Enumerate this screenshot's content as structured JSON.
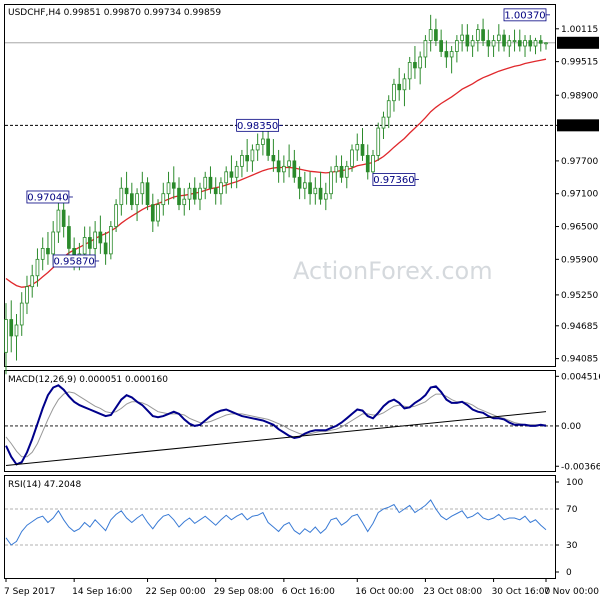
{
  "watermark": "ActionForex.com",
  "colors": {
    "candle": "#2b8a2b",
    "ma": "#e0282c",
    "macd": "#00008b",
    "signal": "#999999",
    "rsi": "#3a7bd5",
    "grid": "#888888",
    "priceTag": "#000000"
  },
  "chart_data": [
    {
      "type": "candlestick",
      "title": "USDCHF,H4  0.99851  0.99870  0.99734  0.99859",
      "ylim": [
        0.9395,
        1.0055
      ],
      "y_ticks": [
        "1.00115",
        "0.99515",
        "0.98900",
        "0.98350",
        "0.97700",
        "0.97100",
        "0.96500",
        "0.95900",
        "0.95250",
        "0.94685",
        "0.94085"
      ],
      "y_tick_values": [
        1.00115,
        0.99515,
        0.989,
        0.9835,
        0.977,
        0.971,
        0.965,
        0.959,
        0.9525,
        0.94685,
        0.94085
      ],
      "last_price": "0.99859",
      "last_price_value": 0.99859,
      "horizontal_line": "0.98350",
      "horizontal_line_value": 0.9835,
      "annotations": [
        {
          "text": "1.00370",
          "x": 103,
          "y": 1.0037
        },
        {
          "text": "0.98350",
          "x": 52,
          "y": 0.9835
        },
        {
          "text": "0.97360",
          "x": 78,
          "y": 0.9736
        },
        {
          "text": "0.97040",
          "x": 12,
          "y": 0.9704
        },
        {
          "text": "0.95870",
          "x": 17,
          "y": 0.9587
        }
      ],
      "candles": [
        [
          0.942,
          0.951,
          0.938,
          0.948
        ],
        [
          0.948,
          0.9515,
          0.942,
          0.945
        ],
        [
          0.945,
          0.949,
          0.9405,
          0.947
        ],
        [
          0.947,
          0.953,
          0.945,
          0.951
        ],
        [
          0.951,
          0.956,
          0.949,
          0.954
        ],
        [
          0.954,
          0.958,
          0.952,
          0.956
        ],
        [
          0.956,
          0.961,
          0.954,
          0.959
        ],
        [
          0.959,
          0.963,
          0.957,
          0.961
        ],
        [
          0.961,
          0.964,
          0.958,
          0.96
        ],
        [
          0.96,
          0.966,
          0.958,
          0.964
        ],
        [
          0.964,
          0.9704,
          0.962,
          0.968
        ],
        [
          0.968,
          0.97,
          0.963,
          0.965
        ],
        [
          0.965,
          0.967,
          0.959,
          0.961
        ],
        [
          0.961,
          0.963,
          0.957,
          0.959
        ],
        [
          0.959,
          0.962,
          0.957,
          0.96
        ],
        [
          0.96,
          0.965,
          0.959,
          0.963
        ],
        [
          0.963,
          0.965,
          0.959,
          0.961
        ],
        [
          0.961,
          0.966,
          0.959,
          0.964
        ],
        [
          0.964,
          0.967,
          0.96,
          0.962
        ],
        [
          0.962,
          0.964,
          0.958,
          0.96
        ],
        [
          0.96,
          0.966,
          0.959,
          0.965
        ],
        [
          0.965,
          0.97,
          0.964,
          0.969
        ],
        [
          0.969,
          0.974,
          0.967,
          0.972
        ],
        [
          0.972,
          0.975,
          0.969,
          0.971
        ],
        [
          0.971,
          0.973,
          0.968,
          0.969
        ],
        [
          0.969,
          0.972,
          0.966,
          0.971
        ],
        [
          0.971,
          0.975,
          0.969,
          0.973
        ],
        [
          0.973,
          0.974,
          0.968,
          0.969
        ],
        [
          0.969,
          0.971,
          0.964,
          0.966
        ],
        [
          0.966,
          0.97,
          0.965,
          0.969
        ],
        [
          0.969,
          0.973,
          0.967,
          0.971
        ],
        [
          0.971,
          0.975,
          0.969,
          0.973
        ],
        [
          0.973,
          0.976,
          0.97,
          0.972
        ],
        [
          0.972,
          0.974,
          0.968,
          0.969
        ],
        [
          0.969,
          0.972,
          0.967,
          0.97
        ],
        [
          0.97,
          0.973,
          0.968,
          0.972
        ],
        [
          0.972,
          0.974,
          0.969,
          0.97
        ],
        [
          0.97,
          0.973,
          0.968,
          0.972
        ],
        [
          0.972,
          0.975,
          0.97,
          0.974
        ],
        [
          0.974,
          0.976,
          0.971,
          0.972
        ],
        [
          0.972,
          0.974,
          0.969,
          0.971
        ],
        [
          0.971,
          0.974,
          0.969,
          0.973
        ],
        [
          0.973,
          0.976,
          0.971,
          0.975
        ],
        [
          0.975,
          0.978,
          0.972,
          0.974
        ],
        [
          0.974,
          0.977,
          0.972,
          0.976
        ],
        [
          0.976,
          0.979,
          0.974,
          0.978
        ],
        [
          0.978,
          0.981,
          0.975,
          0.977
        ],
        [
          0.977,
          0.98,
          0.975,
          0.979
        ],
        [
          0.979,
          0.982,
          0.977,
          0.98
        ],
        [
          0.98,
          0.9835,
          0.978,
          0.981
        ],
        [
          0.981,
          0.983,
          0.977,
          0.978
        ],
        [
          0.978,
          0.981,
          0.975,
          0.977
        ],
        [
          0.977,
          0.979,
          0.973,
          0.975
        ],
        [
          0.975,
          0.978,
          0.973,
          0.976
        ],
        [
          0.976,
          0.98,
          0.974,
          0.977
        ],
        [
          0.977,
          0.979,
          0.973,
          0.974
        ],
        [
          0.974,
          0.976,
          0.97,
          0.972
        ],
        [
          0.972,
          0.975,
          0.97,
          0.973
        ],
        [
          0.973,
          0.975,
          0.969,
          0.971
        ],
        [
          0.971,
          0.974,
          0.969,
          0.972
        ],
        [
          0.972,
          0.975,
          0.969,
          0.97
        ],
        [
          0.97,
          0.973,
          0.968,
          0.971
        ],
        [
          0.971,
          0.976,
          0.97,
          0.975
        ],
        [
          0.975,
          0.978,
          0.973,
          0.976
        ],
        [
          0.976,
          0.978,
          0.973,
          0.974
        ],
        [
          0.974,
          0.977,
          0.972,
          0.976
        ],
        [
          0.976,
          0.98,
          0.975,
          0.979
        ],
        [
          0.979,
          0.982,
          0.977,
          0.98
        ],
        [
          0.98,
          0.983,
          0.977,
          0.978
        ],
        [
          0.978,
          0.98,
          0.9736,
          0.975
        ],
        [
          0.975,
          0.979,
          0.974,
          0.978
        ],
        [
          0.978,
          0.984,
          0.977,
          0.983
        ],
        [
          0.983,
          0.986,
          0.981,
          0.985
        ],
        [
          0.985,
          0.989,
          0.983,
          0.988
        ],
        [
          0.988,
          0.992,
          0.986,
          0.991
        ],
        [
          0.991,
          0.994,
          0.988,
          0.99
        ],
        [
          0.99,
          0.993,
          0.987,
          0.992
        ],
        [
          0.992,
          0.996,
          0.99,
          0.995
        ],
        [
          0.995,
          0.998,
          0.992,
          0.994
        ],
        [
          0.994,
          0.997,
          0.991,
          0.996
        ],
        [
          0.996,
          1.0,
          0.994,
          0.999
        ],
        [
          0.999,
          1.0037,
          0.997,
          1.001
        ],
        [
          1.001,
          1.003,
          0.998,
          0.999
        ],
        [
          0.999,
          1.001,
          0.996,
          0.997
        ],
        [
          0.997,
          0.999,
          0.994,
          0.996
        ],
        [
          0.996,
          0.998,
          0.993,
          0.997
        ],
        [
          0.997,
          1.0,
          0.995,
          0.999
        ],
        [
          0.999,
          1.002,
          0.997,
          1.0
        ],
        [
          1.0,
          1.002,
          0.997,
          0.998
        ],
        [
          0.998,
          1.0,
          0.996,
          0.999
        ],
        [
          0.999,
          1.002,
          0.997,
          1.001
        ],
        [
          1.001,
          1.003,
          0.998,
          0.999
        ],
        [
          0.999,
          1.001,
          0.996,
          0.998
        ],
        [
          0.998,
          1.0,
          0.996,
          0.999
        ],
        [
          0.999,
          1.002,
          0.997,
          1.0
        ],
        [
          1.0,
          1.001,
          0.997,
          0.998
        ],
        [
          0.998,
          1.0,
          0.996,
          0.999
        ],
        [
          0.999,
          1.001,
          0.997,
          0.999
        ],
        [
          0.999,
          1.001,
          0.997,
          0.998
        ],
        [
          0.998,
          1.0,
          0.996,
          0.999
        ],
        [
          0.999,
          1.0,
          0.997,
          0.998
        ],
        [
          0.998,
          0.9995,
          0.9965,
          0.999
        ],
        [
          0.999,
          1.0,
          0.997,
          0.9985
        ],
        [
          0.99851,
          0.9987,
          0.99734,
          0.99859
        ]
      ],
      "ma": [
        0.9555,
        0.9548,
        0.9542,
        0.9539,
        0.954,
        0.9544,
        0.955,
        0.9558,
        0.9566,
        0.9575,
        0.9585,
        0.9594,
        0.9602,
        0.9607,
        0.9612,
        0.9617,
        0.9622,
        0.9628,
        0.9633,
        0.9637,
        0.9642,
        0.9648,
        0.9656,
        0.9663,
        0.9669,
        0.9675,
        0.9681,
        0.9686,
        0.9689,
        0.9692,
        0.9696,
        0.97,
        0.9704,
        0.9706,
        0.9707,
        0.9709,
        0.9711,
        0.9713,
        0.9716,
        0.9719,
        0.9721,
        0.9723,
        0.9726,
        0.9729,
        0.9732,
        0.9736,
        0.974,
        0.9744,
        0.9748,
        0.9752,
        0.9755,
        0.9757,
        0.9758,
        0.9758,
        0.9758,
        0.9757,
        0.9755,
        0.9753,
        0.9751,
        0.975,
        0.9749,
        0.9748,
        0.9749,
        0.9751,
        0.9752,
        0.9754,
        0.9757,
        0.9761,
        0.9763,
        0.9765,
        0.9767,
        0.9772,
        0.9778,
        0.9786,
        0.9795,
        0.9803,
        0.9811,
        0.9821,
        0.983,
        0.9839,
        0.9849,
        0.986,
        0.9868,
        0.9875,
        0.9881,
        0.9887,
        0.9894,
        0.9901,
        0.9906,
        0.9911,
        0.9917,
        0.9922,
        0.9926,
        0.993,
        0.9934,
        0.9937,
        0.994,
        0.9943,
        0.9945,
        0.9948,
        0.995,
        0.9952,
        0.9954,
        0.9956
      ]
    },
    {
      "type": "line",
      "title": "MACD(12,26,9) 0.000051 0.000160",
      "ylim": [
        -0.0041,
        0.005
      ],
      "y_ticks": [
        "0.004516",
        "0.00",
        "-0.003668"
      ],
      "y_tick_values": [
        0.004516,
        0.0,
        -0.003668
      ],
      "series": [
        {
          "name": "MACD",
          "values": [
            -0.0018,
            -0.0028,
            -0.0035,
            -0.0033,
            -0.0024,
            -0.0012,
            0.0002,
            0.0016,
            0.0028,
            0.0035,
            0.0037,
            0.0033,
            0.0027,
            0.0022,
            0.0019,
            0.0017,
            0.0015,
            0.0013,
            0.0011,
            0.0009,
            0.001,
            0.0017,
            0.0024,
            0.0028,
            0.0026,
            0.0022,
            0.0019,
            0.0014,
            0.0009,
            0.0008,
            0.0009,
            0.0011,
            0.0013,
            0.0011,
            0.0006,
            0.0002,
            0.0,
            0.0001,
            0.0005,
            0.0009,
            0.0012,
            0.0014,
            0.0015,
            0.0013,
            0.0011,
            0.0009,
            0.0008,
            0.0007,
            0.0006,
            0.0005,
            0.0003,
            0.0001,
            -0.0003,
            -0.0006,
            -0.0009,
            -0.0011,
            -0.001,
            -0.0007,
            -0.0005,
            -0.0004,
            -0.0004,
            -0.0004,
            -0.0002,
            0.0,
            0.0003,
            0.0007,
            0.0011,
            0.0015,
            0.0014,
            0.0009,
            0.0007,
            0.0012,
            0.0018,
            0.0022,
            0.0024,
            0.0021,
            0.0016,
            0.0017,
            0.0021,
            0.0024,
            0.0028,
            0.0035,
            0.0036,
            0.0031,
            0.0024,
            0.0021,
            0.0021,
            0.0022,
            0.0019,
            0.0015,
            0.0013,
            0.0012,
            0.0009,
            0.0007,
            0.0007,
            0.0006,
            0.0003,
            0.0001,
            0.0001,
            0.0001,
            0.0,
            0.0,
            0.0001,
            0.0
          ]
        },
        {
          "name": "Signal",
          "values": [
            -0.001,
            -0.0016,
            -0.0023,
            -0.0028,
            -0.0028,
            -0.0024,
            -0.0016,
            -0.0005,
            0.0006,
            0.0016,
            0.0024,
            0.0029,
            0.0031,
            0.003,
            0.0027,
            0.0024,
            0.0021,
            0.0018,
            0.0016,
            0.0013,
            0.0012,
            0.0013,
            0.0016,
            0.002,
            0.0022,
            0.0022,
            0.0021,
            0.0019,
            0.0016,
            0.0013,
            0.0012,
            0.0011,
            0.0011,
            0.0011,
            0.001,
            0.0007,
            0.0005,
            0.0003,
            0.0003,
            0.0004,
            0.0006,
            0.0008,
            0.001,
            0.0011,
            0.0011,
            0.0011,
            0.001,
            0.0009,
            0.0008,
            0.0007,
            0.0006,
            0.0004,
            0.0002,
            0.0,
            -0.0003,
            -0.0005,
            -0.0007,
            -0.0008,
            -0.0007,
            -0.0006,
            -0.0005,
            -0.0005,
            -0.0004,
            -0.0003,
            -0.0001,
            0.0002,
            0.0005,
            0.0008,
            0.0011,
            0.0011,
            0.001,
            0.001,
            0.0012,
            0.0015,
            0.0018,
            0.0019,
            0.0018,
            0.0017,
            0.0018,
            0.002,
            0.0022,
            0.0026,
            0.0029,
            0.0029,
            0.0027,
            0.0024,
            0.0022,
            0.0022,
            0.0021,
            0.0019,
            0.0016,
            0.0014,
            0.0012,
            0.001,
            0.0008,
            0.0007,
            0.0005,
            0.0003,
            0.0002,
            0.0001,
            0.0001,
            0.0001,
            0.0001,
            0.0001
          ]
        }
      ],
      "trendline": [
        [
          0,
          -0.0036
        ],
        [
          103,
          0.0013
        ]
      ]
    },
    {
      "type": "line",
      "title": "RSI(14) 47.2048",
      "ylim": [
        0,
        100
      ],
      "y_ticks": [
        "100",
        "70",
        "30",
        "0"
      ],
      "y_tick_values": [
        100,
        70,
        30,
        0
      ],
      "dashed_levels": [
        70,
        30
      ],
      "series": [
        {
          "name": "RSI",
          "values": [
            38,
            30,
            34,
            45,
            52,
            56,
            60,
            62,
            55,
            60,
            68,
            58,
            50,
            45,
            48,
            55,
            50,
            58,
            52,
            46,
            58,
            64,
            68,
            60,
            55,
            60,
            64,
            55,
            48,
            56,
            62,
            64,
            58,
            50,
            56,
            60,
            54,
            58,
            62,
            57,
            52,
            58,
            63,
            58,
            62,
            65,
            58,
            62,
            63,
            66,
            55,
            50,
            45,
            52,
            55,
            46,
            42,
            48,
            44,
            50,
            43,
            48,
            58,
            60,
            52,
            56,
            62,
            64,
            55,
            45,
            54,
            66,
            70,
            72,
            75,
            66,
            70,
            74,
            66,
            70,
            74,
            80,
            70,
            62,
            58,
            62,
            65,
            68,
            60,
            62,
            66,
            60,
            58,
            60,
            64,
            58,
            60,
            60,
            58,
            62,
            55,
            58,
            52,
            47
          ]
        }
      ]
    }
  ],
  "x_axis": {
    "labels": [
      "7 Sep 2017",
      "14 Sep 16:00",
      "22 Sep 00:00",
      "29 Sep 08:00",
      "6 Oct 16:00",
      "16 Oct 00:00",
      "23 Oct 08:00",
      "30 Oct 16:00",
      "7 Nov 00:00"
    ],
    "label_index": [
      0,
      13,
      27,
      40,
      53,
      67,
      80,
      93,
      103
    ]
  }
}
